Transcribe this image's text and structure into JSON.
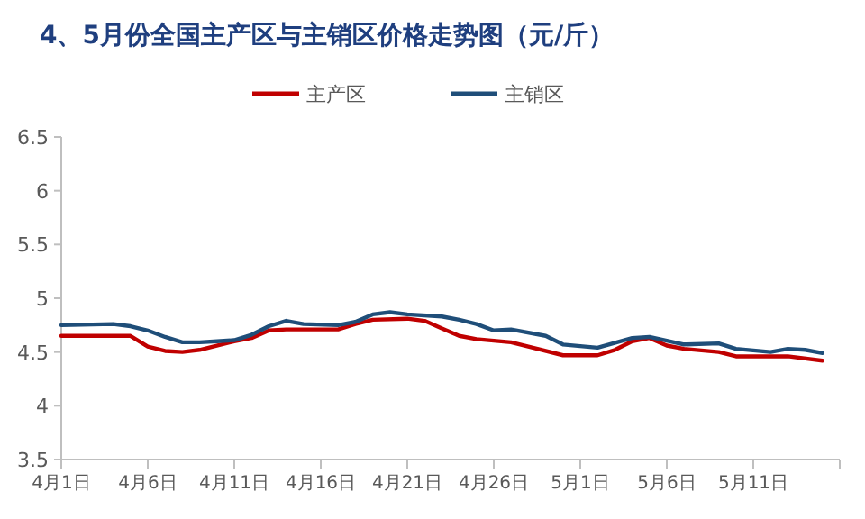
{
  "chart_data": {
    "type": "line",
    "title": "4、5月份全国主产区与主销区价格走势图（元/斤）",
    "legend": "top",
    "xlim": [
      "--04-01",
      "--05-16"
    ],
    "xticks": [
      {
        "value": "--04-01",
        "label": "4月1日"
      },
      {
        "value": "--04-06",
        "label": "4月6日"
      },
      {
        "value": "--04-11",
        "label": "4月11日"
      },
      {
        "value": "--04-16",
        "label": "4月16日"
      },
      {
        "value": "--04-21",
        "label": "4月21日"
      },
      {
        "value": "--04-26",
        "label": "4月26日"
      },
      {
        "value": "--05-01",
        "label": "5月1日"
      },
      {
        "value": "--05-06",
        "label": "5月6日"
      },
      {
        "value": "--05-11",
        "label": "5月11日"
      },
      {
        "value": "--05-16",
        "label": null
      }
    ],
    "ylim": [
      3.5,
      6.5
    ],
    "yticks": [
      3.5,
      4,
      4.5,
      5,
      5.5,
      6,
      6.5
    ],
    "series": [
      {
        "name": "主产区",
        "color": "#c00000",
        "x": [
          "--04-01",
          "--04-05",
          "--04-06",
          "--04-07",
          "--04-08",
          "--04-09",
          "--04-11",
          "--04-12",
          "--04-13",
          "--04-14",
          "--04-17",
          "--04-18",
          "--04-19",
          "--04-21",
          "--04-22",
          "--04-23",
          "--04-24",
          "--04-25",
          "--04-27",
          "--04-28",
          "--04-30",
          "--05-02",
          "--05-03",
          "--05-04",
          "--05-05",
          "--05-06",
          "--05-07",
          "--05-09",
          "--05-10",
          "--05-13",
          "--05-15"
        ],
        "values": [
          4.65,
          4.65,
          4.55,
          4.51,
          4.5,
          4.52,
          4.6,
          4.63,
          4.7,
          4.71,
          4.71,
          4.76,
          4.8,
          4.81,
          4.79,
          4.72,
          4.65,
          4.62,
          4.59,
          4.55,
          4.47,
          4.47,
          4.52,
          4.6,
          4.63,
          4.56,
          4.53,
          4.5,
          4.46,
          4.46,
          4.42
        ]
      },
      {
        "name": "主销区",
        "color": "#1f4e79",
        "x": [
          "--04-01",
          "--04-04",
          "--04-05",
          "--04-06",
          "--04-07",
          "--04-08",
          "--04-09",
          "--04-10",
          "--04-11",
          "--04-12",
          "--04-13",
          "--04-14",
          "--04-15",
          "--04-17",
          "--04-18",
          "--04-19",
          "--04-20",
          "--04-21",
          "--04-23",
          "--04-24",
          "--04-25",
          "--04-26",
          "--04-27",
          "--04-29",
          "--04-30",
          "--05-02",
          "--05-04",
          "--05-05",
          "--05-07",
          "--05-09",
          "--05-10",
          "--05-12",
          "--05-13",
          "--05-14",
          "--05-15"
        ],
        "values": [
          4.75,
          4.76,
          4.74,
          4.7,
          4.64,
          4.59,
          4.59,
          4.6,
          4.61,
          4.66,
          4.74,
          4.79,
          4.76,
          4.75,
          4.78,
          4.85,
          4.87,
          4.85,
          4.83,
          4.8,
          4.76,
          4.7,
          4.71,
          4.65,
          4.57,
          4.54,
          4.63,
          4.64,
          4.57,
          4.58,
          4.53,
          4.5,
          4.53,
          4.52,
          4.49
        ]
      }
    ]
  }
}
